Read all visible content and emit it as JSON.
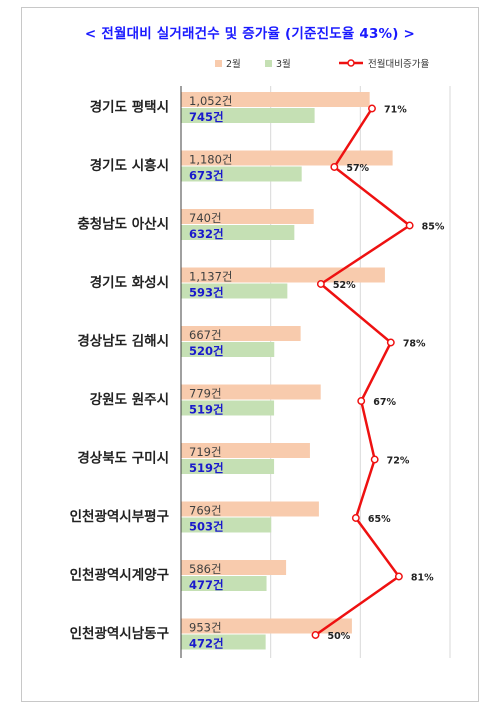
{
  "chart_data": {
    "type": "bar",
    "title": "< 전월대비 실거래건수 및 증가율 (기준진도율 43%) >",
    "categories": [
      "경기도 평택시",
      "경기도 시흥시",
      "충청남도 아산시",
      "경기도 화성시",
      "경상남도 김해시",
      "강원도 원주시",
      "경상북도 구미시",
      "인천광역시부평구",
      "인천광역시계양구",
      "인천광역시남동구"
    ],
    "series": [
      {
        "name": "2월",
        "color": "#f8cbad",
        "values": [
          1052,
          1180,
          740,
          1137,
          667,
          779,
          719,
          769,
          586,
          953
        ],
        "labels": [
          "1,052건",
          "1,180건",
          "740건",
          "1,137건",
          "667건",
          "779건",
          "719건",
          "769건",
          "586건",
          "953건"
        ]
      },
      {
        "name": "3월",
        "color": "#c5e0b4",
        "values": [
          745,
          673,
          632,
          593,
          520,
          519,
          519,
          503,
          477,
          472
        ],
        "labels": [
          "745건",
          "673건",
          "632건",
          "593건",
          "520건",
          "519건",
          "519건",
          "503건",
          "477건",
          "472건"
        ]
      }
    ],
    "line": {
      "name": "전월대비증가율",
      "color": "#ee1111",
      "values": [
        71,
        57,
        85,
        52,
        78,
        67,
        72,
        65,
        81,
        50
      ],
      "labels": [
        "71%",
        "57%",
        "85%",
        "52%",
        "78%",
        "67%",
        "72%",
        "65%",
        "81%",
        "50%"
      ]
    },
    "orientation": "horizontal",
    "xlim": [
      0,
      1500
    ],
    "grid": true,
    "legend": "top"
  }
}
